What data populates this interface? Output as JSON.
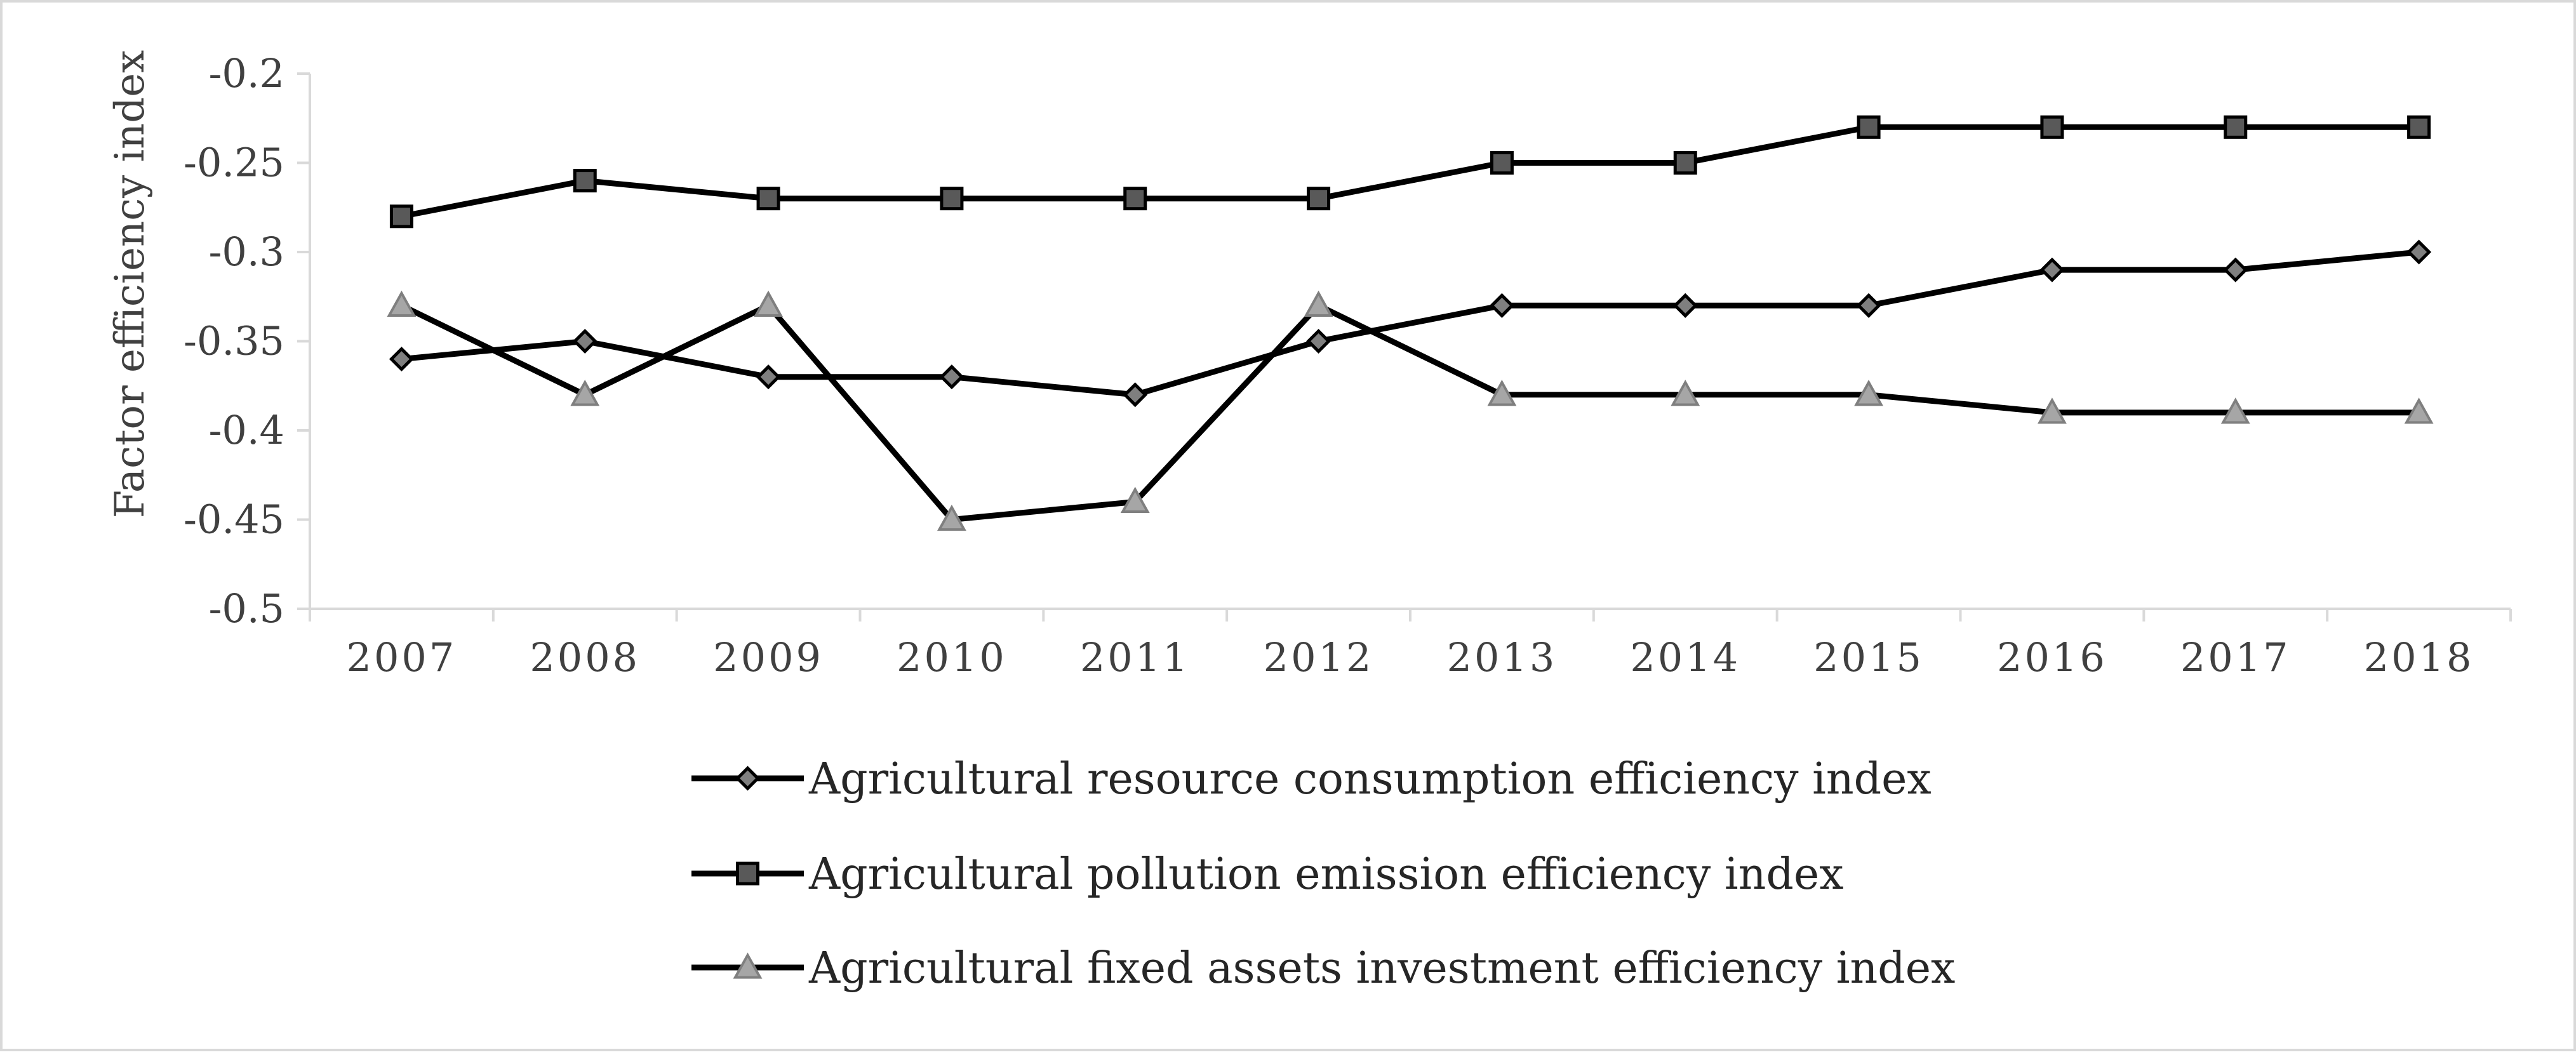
{
  "chart_data": {
    "type": "line",
    "title": "",
    "xlabel": "",
    "ylabel": "Factor efficiency index",
    "ylim": [
      -0.5,
      -0.2
    ],
    "yticks": [
      -0.2,
      -0.25,
      -0.3,
      -0.35,
      -0.4,
      -0.45,
      -0.5
    ],
    "ytick_labels": [
      "-0.2",
      "-0.25",
      "-0.3",
      "-0.35",
      "-0.4",
      "-0.45",
      "-0.5"
    ],
    "grid": false,
    "legend_position": "bottom",
    "categories": [
      "2007",
      "2008",
      "2009",
      "2010",
      "2011",
      "2012",
      "2013",
      "2014",
      "2015",
      "2016",
      "2017",
      "2018"
    ],
    "series": [
      {
        "name": "Agricultural resource consumption efficiency index",
        "marker": "diamond",
        "line_color": "#000000",
        "marker_color": "#7f7f7f",
        "values": [
          -0.36,
          -0.35,
          -0.37,
          -0.37,
          -0.38,
          -0.35,
          -0.33,
          -0.33,
          -0.33,
          -0.31,
          -0.31,
          -0.3
        ]
      },
      {
        "name": "Agricultural pollution emission efficiency index",
        "marker": "square",
        "line_color": "#000000",
        "marker_color": "#595959",
        "values": [
          -0.28,
          -0.26,
          -0.27,
          -0.27,
          -0.27,
          -0.27,
          -0.25,
          -0.25,
          -0.23,
          -0.23,
          -0.23,
          -0.23
        ]
      },
      {
        "name": "Agricultural fixed assets investment efficiency index",
        "marker": "triangle",
        "line_color": "#000000",
        "marker_color": "#a6a6a6",
        "values": [
          -0.33,
          -0.38,
          -0.33,
          -0.45,
          -0.44,
          -0.33,
          -0.38,
          -0.38,
          -0.38,
          -0.39,
          -0.39,
          -0.39
        ]
      }
    ]
  }
}
